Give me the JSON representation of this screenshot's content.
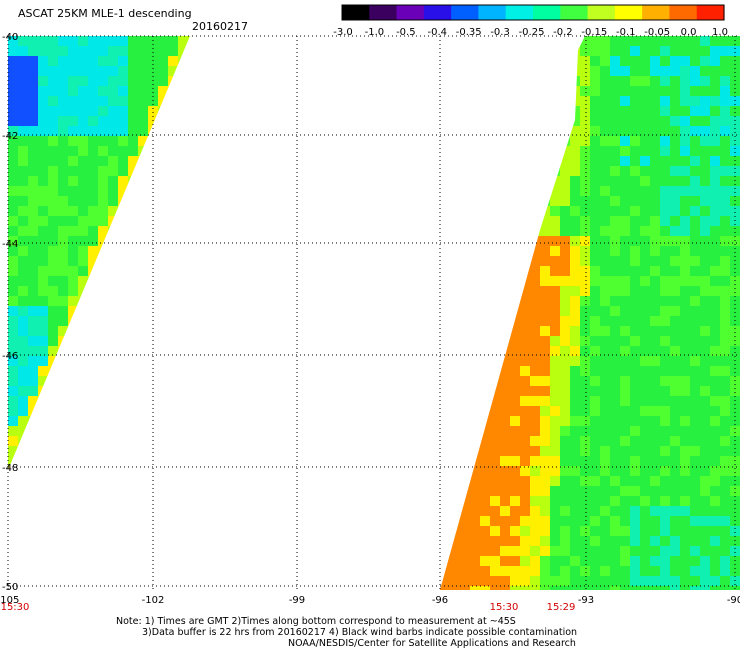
{
  "header": {
    "title": "ASCAT 25KM MLE-1 descending",
    "date": "20160217"
  },
  "colorbar": {
    "tick_labels": [
      "-3.0",
      "-1.0",
      "-0.5",
      "-0.4",
      "-0.35",
      "-0.3",
      "-0.25",
      "-0.2",
      "-0.15",
      "-0.1",
      "-0.05",
      "0.0",
      "1.0"
    ],
    "colors": [
      "#000000",
      "#3b005f",
      "#6a00b8",
      "#2a10e8",
      "#0060ff",
      "#00b4ff",
      "#00f0e6",
      "#00ffa0",
      "#40ff40",
      "#c0ff20",
      "#ffff00",
      "#ffb000",
      "#ff6a00",
      "#ff2000"
    ]
  },
  "map": {
    "lat_labels": [
      "-40",
      "-42",
      "-44",
      "-46",
      "-48",
      "-50"
    ],
    "lon_labels": [
      "-105",
      "-102",
      "-99",
      "-96",
      "-93",
      "-90"
    ],
    "time_labels": [
      "15:30",
      "15:30",
      "15:29"
    ],
    "swath_colors": {
      "green": "#28f040",
      "green_light": "#50ff30",
      "teal": "#10f0b0",
      "cyan": "#00e8e8",
      "blue": "#1050ff",
      "yellow": "#fff000",
      "yellow_green": "#b8ff10",
      "orange": "#ff8800"
    }
  },
  "notes": {
    "line1": "Note: 1) Times are GMT 2)Times along bottom correspond to measurement at ~45S",
    "line2": "3)Data buffer is 22 hrs from 20160217 4) Black wind barbs indicate possible contamination",
    "line3": "NOAA/NESDIS/Center for Satellite Applications and Research"
  }
}
